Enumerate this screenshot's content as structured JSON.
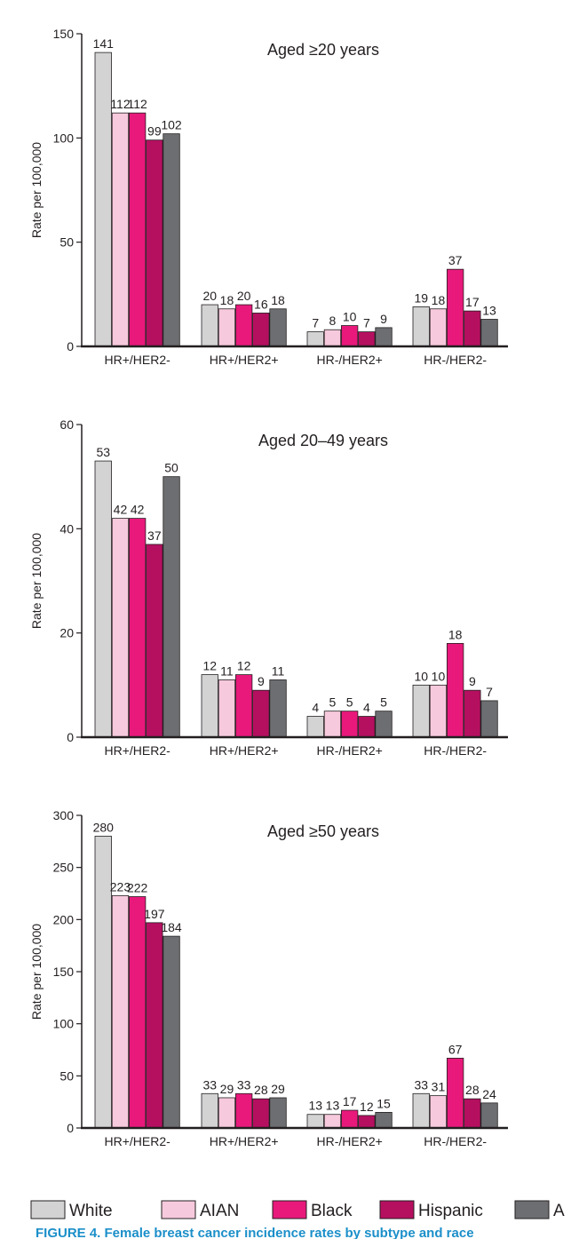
{
  "chart_data": [
    {
      "type": "bar",
      "title": "Aged ≥20 years",
      "ylabel": "Rate per 100,000",
      "xlabel": "",
      "ylim": [
        0,
        150
      ],
      "yticks": [
        0,
        50,
        100,
        150
      ],
      "categories": [
        "HR+/HER2-",
        "HR+/HER2+",
        "HR-/HER2+",
        "HR-/HER2-"
      ],
      "series": [
        {
          "name": "White",
          "values": [
            141,
            20,
            7,
            19
          ]
        },
        {
          "name": "AIAN",
          "values": [
            112,
            18,
            8,
            18
          ]
        },
        {
          "name": "Black",
          "values": [
            112,
            20,
            10,
            37
          ]
        },
        {
          "name": "Hispanic",
          "values": [
            99,
            16,
            7,
            17
          ]
        },
        {
          "name": "A",
          "values": [
            102,
            18,
            9,
            13
          ]
        }
      ]
    },
    {
      "type": "bar",
      "title": "Aged 20–49 years",
      "ylabel": "Rate per 100,000",
      "xlabel": "",
      "ylim": [
        0,
        60
      ],
      "yticks": [
        0,
        20,
        40,
        60
      ],
      "categories": [
        "HR+/HER2-",
        "HR+/HER2+",
        "HR-/HER2+",
        "HR-/HER2-"
      ],
      "series": [
        {
          "name": "White",
          "values": [
            53,
            12,
            4,
            10
          ]
        },
        {
          "name": "AIAN",
          "values": [
            42,
            11,
            5,
            10
          ]
        },
        {
          "name": "Black",
          "values": [
            42,
            12,
            5,
            18
          ]
        },
        {
          "name": "Hispanic",
          "values": [
            37,
            9,
            4,
            9
          ]
        },
        {
          "name": "A",
          "values": [
            50,
            11,
            5,
            7
          ]
        }
      ]
    },
    {
      "type": "bar",
      "title": "Aged ≥50 years",
      "ylabel": "Rate per 100,000",
      "xlabel": "",
      "ylim": [
        0,
        300
      ],
      "yticks": [
        0,
        50,
        100,
        150,
        200,
        250,
        300
      ],
      "categories": [
        "HR+/HER2-",
        "HR+/HER2+",
        "HR-/HER2+",
        "HR-/HER2-"
      ],
      "series": [
        {
          "name": "White",
          "values": [
            280,
            33,
            13,
            33
          ]
        },
        {
          "name": "AIAN",
          "values": [
            223,
            29,
            13,
            31
          ]
        },
        {
          "name": "Black",
          "values": [
            222,
            33,
            17,
            67
          ]
        },
        {
          "name": "Hispanic",
          "values": [
            197,
            28,
            12,
            28
          ]
        },
        {
          "name": "A",
          "values": [
            184,
            29,
            15,
            24
          ]
        }
      ]
    }
  ],
  "colors": {
    "White": "#d3d3d4",
    "AIAN": "#f7c9dc",
    "Black": "#e8197b",
    "Hispanic": "#b50f60",
    "A": "#6d6e71",
    "bar_stroke": "#231f20",
    "caption": "#1b8fc9"
  },
  "legend": [
    "White",
    "AIAN",
    "Black",
    "Hispanic",
    "A"
  ],
  "caption": "FIGURE 4. Female breast cancer incidence rates by subtype and race"
}
